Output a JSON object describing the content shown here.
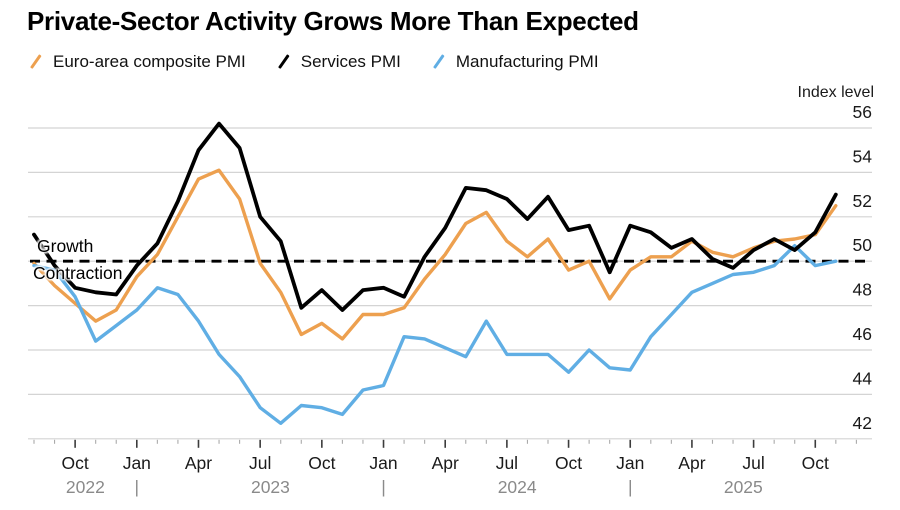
{
  "title": "Private-Sector Activity Grows More Than Expected",
  "legend": [
    {
      "label": "Euro-area composite PMI",
      "color": "#EDA04F"
    },
    {
      "label": "Services PMI",
      "color": "#000000"
    },
    {
      "label": "Manufacturing PMI",
      "color": "#60AEE4"
    }
  ],
  "axis": {
    "unit_label": "Index level",
    "y_ticks": [
      42,
      44,
      46,
      48,
      50,
      52,
      54,
      56
    ],
    "ylim": [
      41.6,
      56.6
    ]
  },
  "annotations": {
    "growth": "Growth",
    "contraction": "Contraction",
    "baseline_value": 50
  },
  "colors": {
    "grid": "#D4D4D4",
    "baseline": "#000000",
    "month_label": "#1a1a1a",
    "year_label": "#8a8a8a",
    "tick_major": "#3c3c3c",
    "tick_minor": "#aaaaaa",
    "y_label": "#1a1a1a"
  },
  "chart_data": {
    "type": "line",
    "title": "Private-Sector Activity Grows More Than Expected",
    "ylabel": "Index level",
    "baseline": 50,
    "ylim": [
      41.6,
      56.6
    ],
    "grid": true,
    "legend_position": "top",
    "x": [
      "Jul 2022",
      "Aug 2022",
      "Sep 2022",
      "Oct 2022",
      "Nov 2022",
      "Dec 2022",
      "Jan 2023",
      "Feb 2023",
      "Mar 2023",
      "Apr 2023",
      "May 2023",
      "Jun 2023",
      "Jul 2023",
      "Aug 2023",
      "Sep 2023",
      "Oct 2023",
      "Nov 2023",
      "Dec 2023",
      "Jan 2024",
      "Feb 2024",
      "Mar 2024",
      "Apr 2024",
      "May 2024",
      "Jun 2024",
      "Jul 2024",
      "Aug 2024",
      "Sep 2024",
      "Oct 2024",
      "Nov 2024",
      "Dec 2024",
      "Jan 2025",
      "Feb 2025",
      "Mar 2025",
      "Apr 2025",
      "May 2025",
      "Jun 2025",
      "Jul 2025",
      "Aug 2025",
      "Sep 2025",
      "Oct 2025"
    ],
    "quarter_tick_months": [
      "Jan",
      "Apr",
      "Jul",
      "Oct"
    ],
    "year_separator": "|",
    "series": [
      {
        "name": "Euro-area composite PMI",
        "color": "#EDA04F",
        "width": 3.4,
        "values": [
          49.9,
          48.9,
          48.1,
          47.3,
          47.8,
          49.3,
          50.3,
          52.0,
          53.7,
          54.1,
          52.8,
          49.9,
          48.6,
          46.7,
          47.2,
          46.5,
          47.6,
          47.6,
          47.9,
          49.2,
          50.3,
          51.7,
          52.2,
          50.9,
          50.2,
          51.0,
          49.6,
          50.0,
          48.3,
          49.6,
          50.2,
          50.2,
          50.9,
          50.4,
          50.2,
          50.6,
          50.9,
          51.0,
          51.2,
          52.5
        ]
      },
      {
        "name": "Services PMI",
        "color": "#000000",
        "width": 3.8,
        "values": [
          51.2,
          49.8,
          48.8,
          48.6,
          48.5,
          49.8,
          50.8,
          52.7,
          55.0,
          56.2,
          55.1,
          52.0,
          50.9,
          47.9,
          48.7,
          47.8,
          48.7,
          48.8,
          48.4,
          50.2,
          51.5,
          53.3,
          53.2,
          52.8,
          51.9,
          52.9,
          51.4,
          51.6,
          49.5,
          51.6,
          51.3,
          50.6,
          51.0,
          50.1,
          49.7,
          50.5,
          51.0,
          50.5,
          51.3,
          53.0
        ]
      },
      {
        "name": "Manufacturing PMI",
        "color": "#60AEE4",
        "width": 3.4,
        "values": [
          49.8,
          49.6,
          48.4,
          46.4,
          47.1,
          47.8,
          48.8,
          48.5,
          47.3,
          45.8,
          44.8,
          43.4,
          42.7,
          43.5,
          43.4,
          43.1,
          44.2,
          44.4,
          46.6,
          46.5,
          46.1,
          45.7,
          47.3,
          45.8,
          45.8,
          45.8,
          45.0,
          46.0,
          45.2,
          45.1,
          46.6,
          47.6,
          48.6,
          49.0,
          49.4,
          49.5,
          49.8,
          50.7,
          49.8,
          50.0
        ]
      }
    ]
  }
}
